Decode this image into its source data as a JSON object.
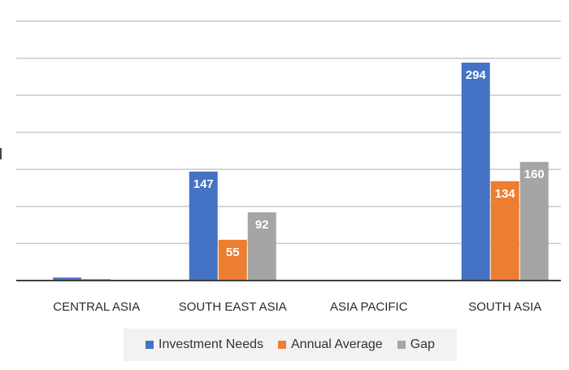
{
  "chart_data": {
    "type": "bar",
    "categories": [
      "CENTRAL ASIA",
      "SOUTH EAST ASIA",
      "ASIA PACIFIC",
      "SOUTH ASIA"
    ],
    "series": [
      {
        "name": "Investment Needs",
        "color": "#4472c4",
        "values": [
          4,
          147,
          null,
          294
        ],
        "labels": [
          "",
          "147",
          "",
          "294"
        ]
      },
      {
        "name": "Annual Average",
        "color": "#ed7d31",
        "values": [
          2,
          55,
          null,
          134
        ],
        "labels": [
          "",
          "55",
          "",
          "134"
        ]
      },
      {
        "name": "Gap",
        "color": "#a5a5a5",
        "values": [
          1,
          92,
          null,
          160
        ],
        "labels": [
          "",
          "92",
          "",
          "160"
        ]
      }
    ],
    "ylim": [
      0,
      350
    ],
    "grid": true,
    "legend_position": "bottom"
  }
}
